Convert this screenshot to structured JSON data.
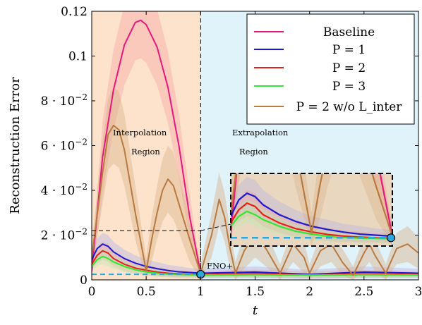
{
  "chart_data": {
    "type": "line",
    "xlabel": "t",
    "ylabel": "Reconstruction Error",
    "xlim": [
      0,
      3
    ],
    "ylim": [
      0,
      0.12
    ],
    "x_ticks": [
      {
        "value": 0,
        "label": "0"
      },
      {
        "value": 0.5,
        "label": "0.5"
      },
      {
        "value": 1,
        "label": "1"
      },
      {
        "value": 1.5,
        "label": "1.5"
      },
      {
        "value": 2,
        "label": "2"
      },
      {
        "value": 2.5,
        "label": "2.5"
      },
      {
        "value": 3,
        "label": "3"
      }
    ],
    "y_ticks": [
      {
        "value": 0,
        "label": "0",
        "exp": ""
      },
      {
        "value": 0.02,
        "label": "2 · 10",
        "exp": "−2"
      },
      {
        "value": 0.04,
        "label": "4 · 10",
        "exp": "−2"
      },
      {
        "value": 0.06,
        "label": "6 · 10",
        "exp": "−2"
      },
      {
        "value": 0.08,
        "label": "8 · 10",
        "exp": "−2"
      },
      {
        "value": 0.1,
        "label": "0.1",
        "exp": ""
      },
      {
        "value": 0.12,
        "label": "0.12",
        "exp": ""
      }
    ],
    "regions": [
      {
        "x_range": [
          0,
          1
        ],
        "color": "#fde3cc",
        "label_line1": "Interpolation",
        "label_line2": "Region"
      },
      {
        "x_range": [
          1,
          3
        ],
        "color": "#e0f3fb",
        "label_line1": "Extrapolation",
        "label_line2": "Region"
      }
    ],
    "annotations": {
      "fno_label": "FNO+",
      "fno_point": [
        1,
        0.0025
      ],
      "fno_baseline_y": 0.0025
    },
    "legend": {
      "position": "top-right"
    },
    "series": [
      {
        "name": "Baseline",
        "color": "#e8177d",
        "band_color": "#f7a8a8",
        "x": [
          0,
          0.1,
          0.2,
          0.3,
          0.4,
          0.45,
          0.5,
          0.6,
          0.7,
          0.8,
          0.9,
          1.0
        ],
        "y": [
          0.004,
          0.055,
          0.085,
          0.105,
          0.115,
          0.116,
          0.114,
          0.104,
          0.086,
          0.06,
          0.028,
          0.003
        ],
        "band": [
          0.004,
          0.016,
          0.018,
          0.018,
          0.017,
          0.017,
          0.017,
          0.017,
          0.016,
          0.014,
          0.01,
          0.002
        ]
      },
      {
        "name": "P = 1",
        "color": "#1a1ad6",
        "band_color": "#b9b4e6",
        "x": [
          0,
          0.05,
          0.1,
          0.15,
          0.2,
          0.3,
          0.4,
          0.5,
          0.6,
          0.7,
          0.8,
          0.9,
          1.0,
          1.5,
          2.0,
          2.5,
          3.0
        ],
        "y": [
          0.009,
          0.014,
          0.016,
          0.015,
          0.0125,
          0.0095,
          0.0075,
          0.006,
          0.005,
          0.0042,
          0.0036,
          0.0033,
          0.003,
          0.0035,
          0.0025,
          0.0035,
          0.003
        ],
        "band": [
          0.003,
          0.0045,
          0.005,
          0.005,
          0.0045,
          0.004,
          0.0035,
          0.003,
          0.003,
          0.0025,
          0.0025,
          0.002,
          0.002,
          0.0025,
          0.002,
          0.0025,
          0.002
        ]
      },
      {
        "name": "P = 2",
        "color": "#ee1c1c",
        "band_color": "#f3a3a3",
        "x": [
          0,
          0.05,
          0.1,
          0.15,
          0.2,
          0.3,
          0.4,
          0.5,
          0.6,
          0.7,
          0.8,
          0.9,
          1.0,
          1.5,
          2.0,
          2.5,
          3.0
        ],
        "y": [
          0.007,
          0.011,
          0.013,
          0.012,
          0.0095,
          0.007,
          0.0053,
          0.0043,
          0.0035,
          0.003,
          0.0027,
          0.0025,
          0.0024,
          0.0028,
          0.0022,
          0.0027,
          0.0024
        ],
        "band": [
          0.002,
          0.0035,
          0.004,
          0.004,
          0.0035,
          0.003,
          0.0025,
          0.0022,
          0.002,
          0.0018,
          0.0016,
          0.0015,
          0.0015,
          0.0018,
          0.0015,
          0.0018,
          0.0015
        ]
      },
      {
        "name": "P = 3",
        "color": "#33e62e",
        "band_color": "#b8ecb0",
        "x": [
          0,
          0.05,
          0.1,
          0.15,
          0.2,
          0.3,
          0.4,
          0.5,
          0.6,
          0.7,
          0.8,
          0.9,
          1.0,
          1.5,
          2.0,
          2.5,
          3.0
        ],
        "y": [
          0.006,
          0.009,
          0.0105,
          0.0095,
          0.008,
          0.006,
          0.0045,
          0.0036,
          0.003,
          0.0026,
          0.0024,
          0.0023,
          0.0022,
          0.0023,
          0.0021,
          0.0023,
          0.0022
        ],
        "band": [
          0.002,
          0.003,
          0.0035,
          0.0035,
          0.003,
          0.0025,
          0.002,
          0.0018,
          0.0016,
          0.0015,
          0.0014,
          0.0013,
          0.0013,
          0.0014,
          0.0013,
          0.0014,
          0.0013
        ]
      },
      {
        "name": "P = 2 w/o L_inter",
        "color": "#b97a40",
        "band_color": "#d9b48a",
        "x": [
          0,
          0.1,
          0.15,
          0.2,
          0.25,
          0.3,
          0.4,
          0.5,
          0.55,
          0.6,
          0.65,
          0.7,
          0.75,
          0.8,
          0.9,
          1.0,
          1.1,
          1.17,
          1.22,
          1.27,
          1.32,
          1.4,
          1.5,
          1.6,
          1.73,
          1.85,
          1.95,
          2.0,
          2.1,
          2.2,
          2.3,
          2.4,
          2.5,
          2.55,
          2.6,
          2.7,
          2.8,
          2.9,
          3.0
        ],
        "y": [
          0.01,
          0.048,
          0.065,
          0.069,
          0.067,
          0.058,
          0.03,
          0.004,
          0.018,
          0.03,
          0.04,
          0.045,
          0.042,
          0.034,
          0.018,
          0.003,
          0.02,
          0.036,
          0.028,
          0.014,
          0.003,
          0.013,
          0.02,
          0.014,
          0.003,
          0.016,
          0.01,
          0.003,
          0.013,
          0.016,
          0.008,
          0.002,
          0.012,
          0.016,
          0.011,
          0.003,
          0.014,
          0.016,
          0.012
        ],
        "band": [
          0.006,
          0.014,
          0.016,
          0.017,
          0.017,
          0.016,
          0.012,
          0.006,
          0.01,
          0.012,
          0.014,
          0.015,
          0.015,
          0.013,
          0.01,
          0.004,
          0.01,
          0.012,
          0.011,
          0.009,
          0.005,
          0.008,
          0.01,
          0.008,
          0.004,
          0.008,
          0.007,
          0.004,
          0.007,
          0.008,
          0.006,
          0.004,
          0.007,
          0.008,
          0.007,
          0.004,
          0.007,
          0.008,
          0.007
        ]
      }
    ]
  }
}
